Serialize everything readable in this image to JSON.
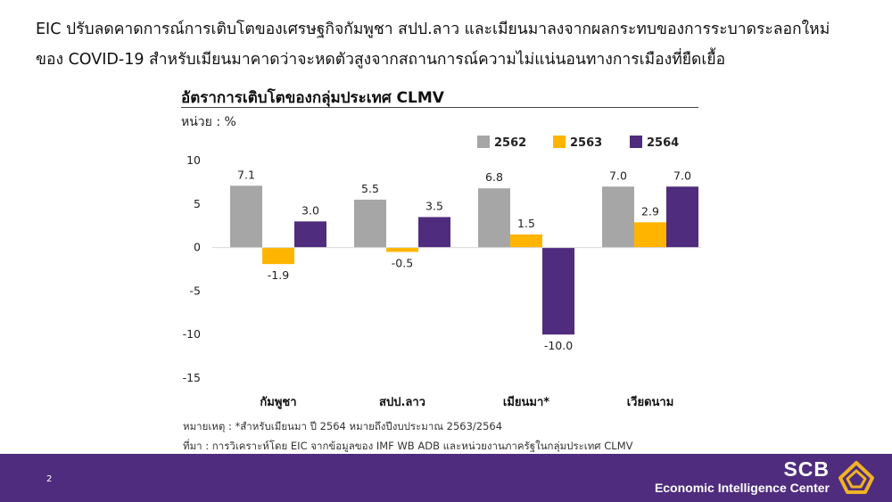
{
  "headline": {
    "line1": "EIC ปรับลดคาดการณ์การเติบโตของเศรษฐกิจกัมพูชา สปป.ลาว และเมียนมาลงจากผลกระทบของการระบาดระลอกใหม่",
    "line2": "ของ COVID-19 สำหรับเมียนมาคาดว่าจะหดตัวสูงจากสถานการณ์ความไม่แน่นอนทางการเมืองที่ยืดเยื้อ"
  },
  "chart_data": {
    "type": "bar",
    "title": "อัตราการเติบโตของกลุ่มประเทศ CLMV",
    "unit": "หน่วย : %",
    "categories": [
      "กัมพูชา",
      "สปป.ลาว",
      "เมียนมา*",
      "เวียดนาม"
    ],
    "series": [
      {
        "name": "2562",
        "color": "#a6a6a6",
        "values": [
          7.1,
          5.5,
          6.8,
          7.0
        ]
      },
      {
        "name": "2563",
        "color": "#ffb400",
        "values": [
          -1.9,
          -0.5,
          1.5,
          2.9
        ]
      },
      {
        "name": "2564",
        "color": "#4f2c7e",
        "values": [
          3.0,
          3.5,
          -10.0,
          7.0
        ]
      }
    ],
    "ylim": [
      -15,
      10
    ],
    "yticks": [
      10,
      5,
      0,
      -5,
      -10,
      -15
    ],
    "legend_position": "top-right",
    "grid": false
  },
  "footnotes": {
    "note": "หมายเหตุ : *สำหรับเมียนมา ปี 2564 หมายถึงปีงบประมาณ 2563/2564",
    "source": "ที่มา : การวิเคราะห์โดย EIC จากข้อมูลของ IMF WB ADB และหน่วยงานภาครัฐในกลุ่มประเทศ CLMV"
  },
  "footer": {
    "page_number": "2",
    "brand_name": "SCB",
    "brand_sub": "Economic Intelligence Center",
    "bar_color": "#4f2c7e",
    "logo_icon": "scb-house-logo-icon"
  }
}
